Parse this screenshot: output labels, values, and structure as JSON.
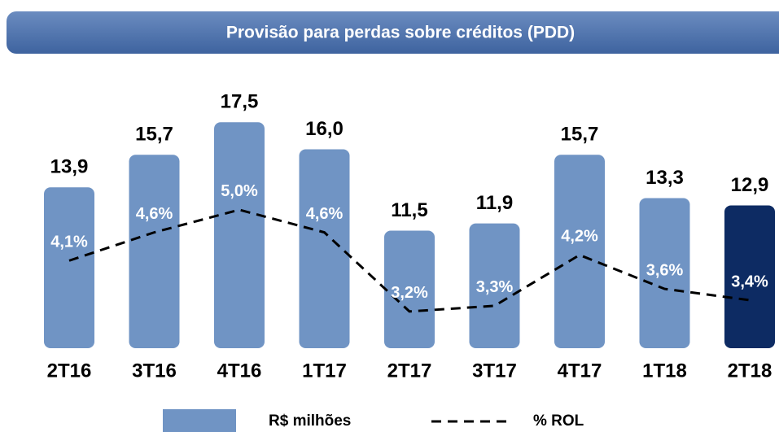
{
  "chart_data": {
    "type": "bar_line",
    "title": "Provisão para perdas sobre créditos (PDD)",
    "categories": [
      "2T16",
      "3T16",
      "4T16",
      "1T17",
      "2T17",
      "3T17",
      "4T17",
      "1T18",
      "2T18"
    ],
    "series": [
      {
        "name": "R$ milhões",
        "type": "bar",
        "color": "#7094c4",
        "colors": [
          "#7094c4",
          "#7094c4",
          "#7094c4",
          "#7094c4",
          "#7094c4",
          "#7094c4",
          "#7094c4",
          "#7094c4",
          "#0d2b63"
        ],
        "values": [
          13.9,
          15.7,
          17.5,
          16.0,
          11.5,
          11.9,
          15.7,
          13.3,
          12.9
        ],
        "value_labels": [
          "13,9",
          "15,7",
          "17,5",
          "16,0",
          "11,5",
          "11,9",
          "15,7",
          "13,3",
          "12,9"
        ]
      },
      {
        "name": "% ROL",
        "type": "line",
        "axis": "y2",
        "color": "#000000",
        "values": [
          4.1,
          4.6,
          5.0,
          4.6,
          3.2,
          3.3,
          4.2,
          3.6,
          3.4
        ],
        "value_labels": [
          "4,1%",
          "4,6%",
          "5,0%",
          "4,6%",
          "3,2%",
          "3,3%",
          "4,2%",
          "3,6%",
          "3,4%"
        ]
      }
    ],
    "ylim": [
      5,
      18.5
    ],
    "y2lim": [
      2.55,
      6.87
    ],
    "legend": "bottom"
  }
}
